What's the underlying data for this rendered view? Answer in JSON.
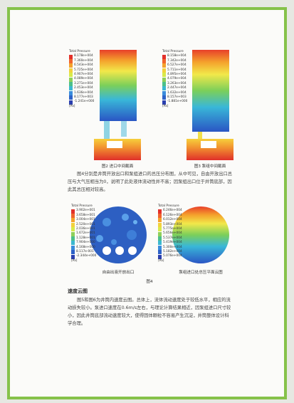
{
  "figure2": {
    "legend_title": "Total Pressure",
    "legend_values": [
      "8.178e+004",
      "7.360e+004",
      "6.543e+004",
      "5.725e+004",
      "4.907e+004",
      "4.089e+004",
      "3.271e+004",
      "2.453e+004",
      "1.636e+004",
      "8.177e+003",
      "-1.241e+000"
    ],
    "unit": "[Pa]",
    "caption": "图2  进口中间截面"
  },
  "figure3": {
    "legend_title": "Total Pressure",
    "legend_values": [
      "8.158e+004",
      "7.342e+004",
      "6.527e+004",
      "5.711e+004",
      "4.895e+004",
      "4.079e+004",
      "3.263e+004",
      "2.447e+004",
      "1.632e+004",
      "8.157e+003",
      "-1.881e+000"
    ],
    "unit": "[Pa]",
    "caption": "图3  泵组中间截面"
  },
  "paragraph1": "图4分别是井筒开放出口和泵组进口的总压分布图，从中可见，自由开放出口总压与大气压相当为0，说明了此处液体流动性并不高；因泵组出口位于井筒底部，因此其总压相对较高。",
  "figure4": {
    "left": {
      "legend_title": "Total Pressure",
      "legend_values": [
        "3.902e+001",
        "3.658e+001",
        "3.004e+001",
        "2.520e+001",
        "2.036e+001",
        "1.672e+001",
        "1.128e+001",
        "7.904e+000",
        "4.168e+000",
        "8.117e-001",
        "-2.344e+000"
      ],
      "unit": "[Pa]",
      "caption": "自由出液开放出口"
    },
    "right": {
      "legend_title": "Total Pressure",
      "legend_values": [
        "6.246e+004",
        "6.126e+004",
        "6.012e+004",
        "5.893e+004",
        "5.775e+004",
        "5.656e+004",
        "5.537e+004",
        "5.419e+004",
        "5.300e+004",
        "5.182e+004",
        "5.076e+004"
      ],
      "unit": "[Pa]",
      "caption": "泵组进口处总压平面云图"
    },
    "caption": "图4"
  },
  "section_title": "速度云图",
  "paragraph2": "图5和图6为井筒内速度云图。总体上，流体流动速度处于较低水平，相应的流动损失较小。泵进口速度在0.6m/s左右，与理论计算结果相近，因泵组进口尺寸较小，因此井筒底部流动速度较大，使得固体颗粒不容易产生沉淀，井筒整体设计科学合理。"
}
